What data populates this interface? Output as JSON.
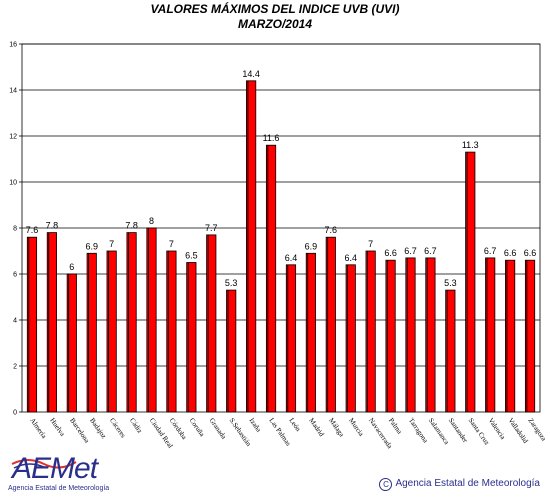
{
  "header": {
    "title": "VALORES MÁXIMOS DEL INDICE UVB (UVI)",
    "subtitle": "MARZO/2014"
  },
  "footer": {
    "logo_text": "AEMet",
    "logo_subtext": "Agencia Estatal de Meteorología",
    "copyright_symbol": "C",
    "copyright_text": "Agencia Estatal de Meteorología"
  },
  "colors": {
    "bar_fill": "#ff0000",
    "bar_stroke": "#000000",
    "logo_blue": "#2a2f8c",
    "logo_red": "#e03030"
  },
  "chart_data": {
    "type": "bar",
    "title": "VALORES MÁXIMOS DEL INDICE UVB (UVI)",
    "subtitle": "MARZO/2014",
    "xlabel": "",
    "ylabel": "",
    "ylim": [
      0,
      16
    ],
    "yticks": [
      0,
      2,
      4,
      6,
      8,
      10,
      12,
      14,
      16
    ],
    "grid": true,
    "categories": [
      "Almería",
      "Huelva",
      "Barcelona",
      "Badajoz",
      "Cáceres",
      "Cádiz",
      "Ciudad Real",
      "Córdoba",
      "Coruña",
      "Granada",
      "S.Sebastián",
      "Izaña",
      "Las Palmas",
      "León",
      "Madrid",
      "Málaga",
      "Murcia",
      "Navacerrada",
      "Palma",
      "Tarragona",
      "Salamanca",
      "Santander",
      "Santa Cruz",
      "Valencia",
      "Valladolid",
      "Zaragoza"
    ],
    "values": [
      7.6,
      7.8,
      6,
      6.9,
      7,
      7.8,
      8,
      7,
      6.5,
      7.7,
      5.3,
      14.4,
      11.6,
      6.4,
      6.9,
      7.6,
      6.4,
      7,
      6.6,
      6.7,
      6.7,
      5.3,
      11.3,
      6.7,
      6.6,
      6.6
    ],
    "value_labels": [
      "7.6",
      "7.8",
      "6",
      "6.9",
      "7",
      "7.8",
      "8",
      "7",
      "6.5",
      "7.7",
      "5.3",
      "14.4",
      "11.6",
      "6.4",
      "6.9",
      "7.6",
      "6.4",
      "7",
      "6.6",
      "6.7",
      "6.7",
      "5.3",
      "11.3",
      "6.7",
      "6.6",
      "6.6"
    ]
  }
}
